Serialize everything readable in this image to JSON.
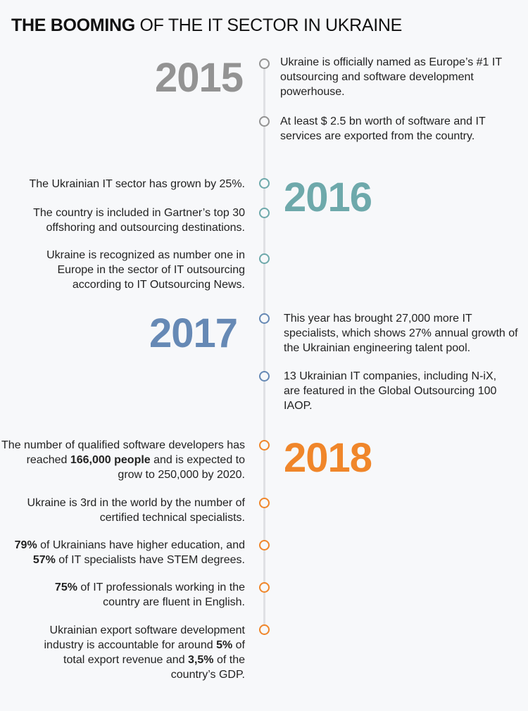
{
  "title": {
    "bold": "THE BOOMING",
    "rest": " OF THE IT SECTOR IN UKRAINE"
  },
  "colors": {
    "y2015": "#939393",
    "y2016": "#6ea9ab",
    "y2017": "#6689b5",
    "y2018": "#f0862a",
    "line": "#e0e1e4"
  },
  "timeline": [
    {
      "year": "2015",
      "items": [
        {
          "text": "Ukraine is officially named as Europe’s #1 IT outsourcing and software development powerhouse."
        },
        {
          "text": "At least $ 2.5 bn worth of software and IT services are exported from the country."
        }
      ]
    },
    {
      "year": "2016",
      "items": [
        {
          "text": "The Ukrainian IT sector has grown by 25%."
        },
        {
          "text": "The country is included in Gartner’s top 30 offshoring and outsourcing destinations."
        },
        {
          "text": "Ukraine is recognized as number one in Europe in the sector of IT outsourcing according to IT Outsourcing News."
        }
      ]
    },
    {
      "year": "2017",
      "items": [
        {
          "text": "This year has brought 27,000 more IT specialists, which shows 27% annual growth of the Ukrainian engineering talent pool."
        },
        {
          "text": "13 Ukrainian IT companies, including N-iX, are featured in the Global Outsourcing 100 IAOP."
        }
      ]
    },
    {
      "year": "2018",
      "items": [
        {
          "a": "The number of qualified software developers has reached ",
          "b": "166,000 people",
          "c": " and is expected to grow to 250,000 by 2020."
        },
        {
          "text": "Ukraine is 3rd in the world by the number of certified technical specialists."
        },
        {
          "b1": "79%",
          "a": " of Ukrainians have higher education, and ",
          "b2": "57%",
          "c": " of IT specialists have STEM degrees."
        },
        {
          "b": "75%",
          "a": " of IT professionals working in the country are fluent in English."
        },
        {
          "a": "Ukrainian export software development industry is accountable for around ",
          "b1": "5%",
          "c": " of total export revenue and ",
          "b2": "3,5%",
          "d": " of the country’s GDP."
        }
      ]
    }
  ]
}
